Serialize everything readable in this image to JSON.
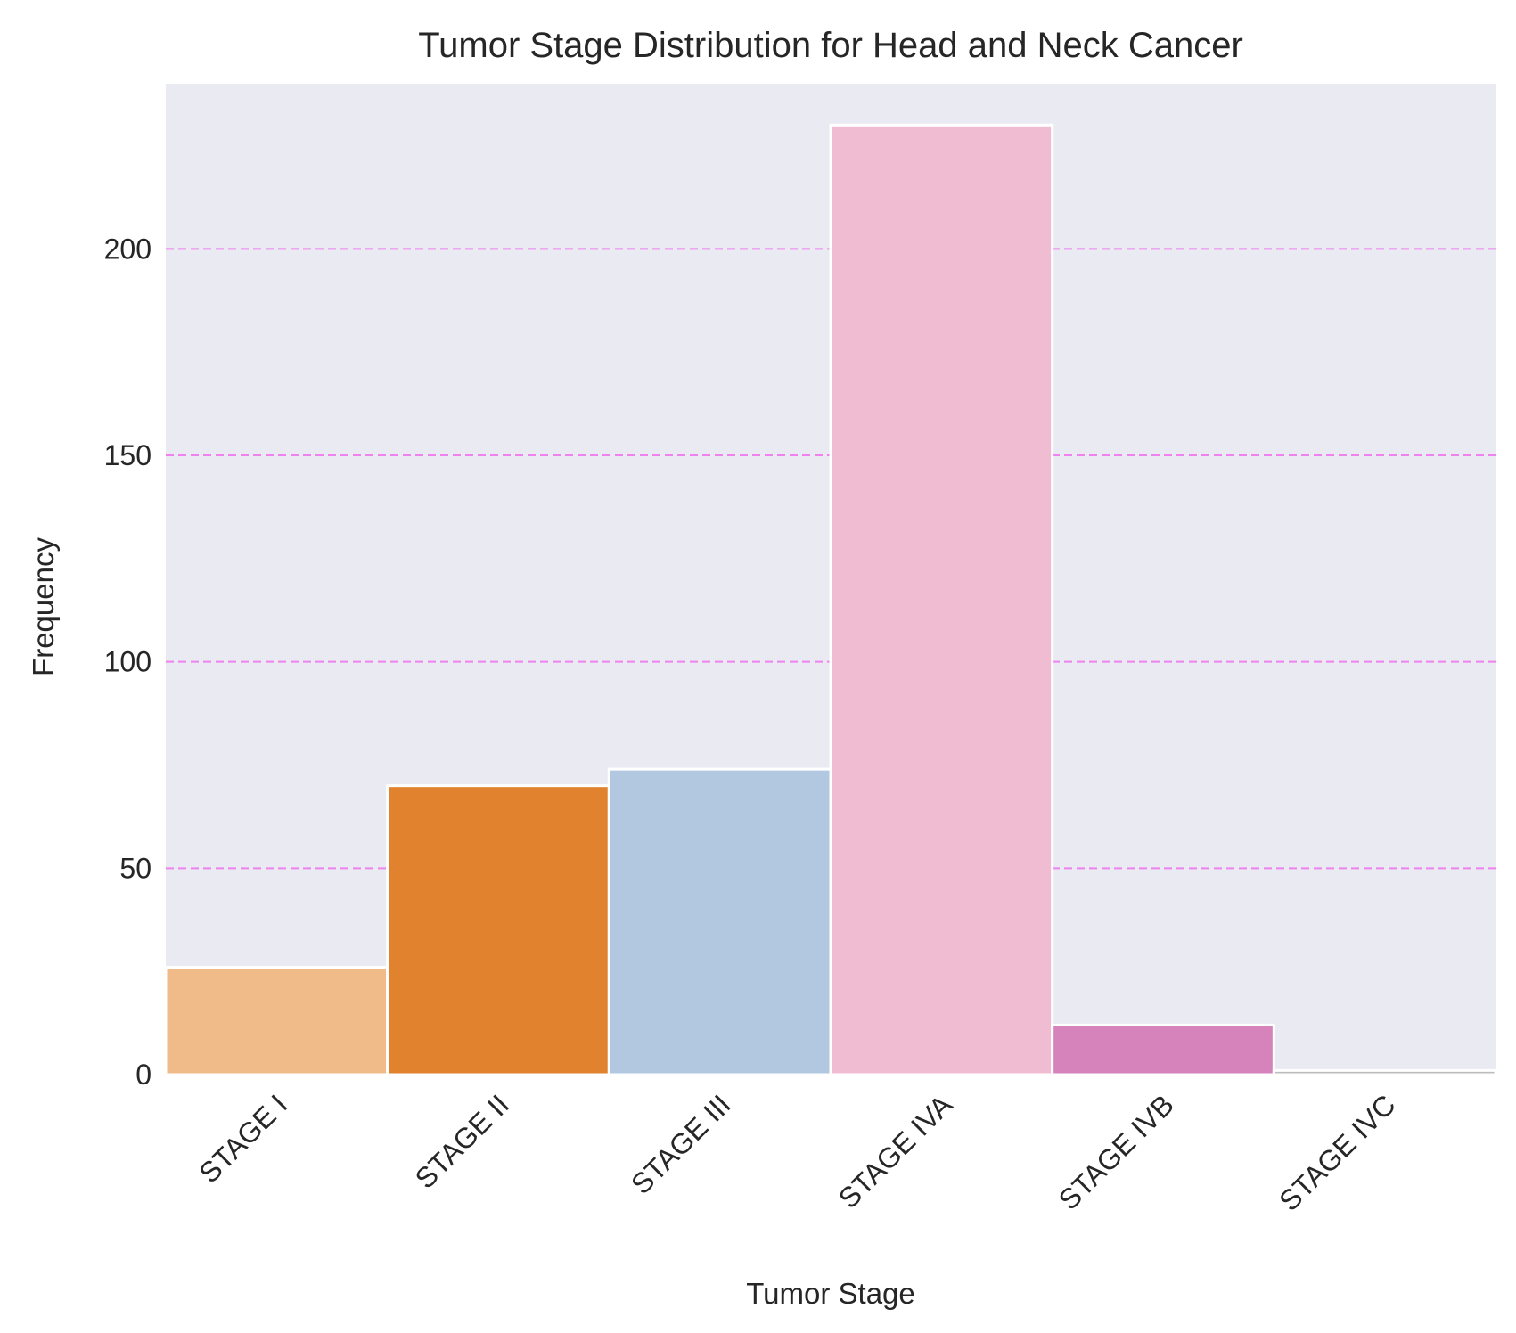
{
  "chart_data": {
    "type": "bar",
    "title": "Tumor Stage Distribution for Head and Neck Cancer",
    "xlabel": "Tumor Stage",
    "ylabel": "Frequency",
    "categories": [
      "STAGE I",
      "STAGE II",
      "STAGE III",
      "STAGE IVA",
      "STAGE IVB",
      "STAGE IVC"
    ],
    "values": [
      26,
      70,
      74,
      230,
      12,
      1
    ],
    "bar_colors": [
      "#f0bb88",
      "#e0822e",
      "#b2c7e0",
      "#efbcd2",
      "#d683bc",
      "#bdbdbd"
    ],
    "ylim": [
      0,
      240
    ],
    "yticks": [
      0,
      50,
      100,
      150,
      200
    ],
    "grid": "horizontal dashed",
    "grid_color": "#ee82ee",
    "background_color": "#eaeaf2"
  }
}
